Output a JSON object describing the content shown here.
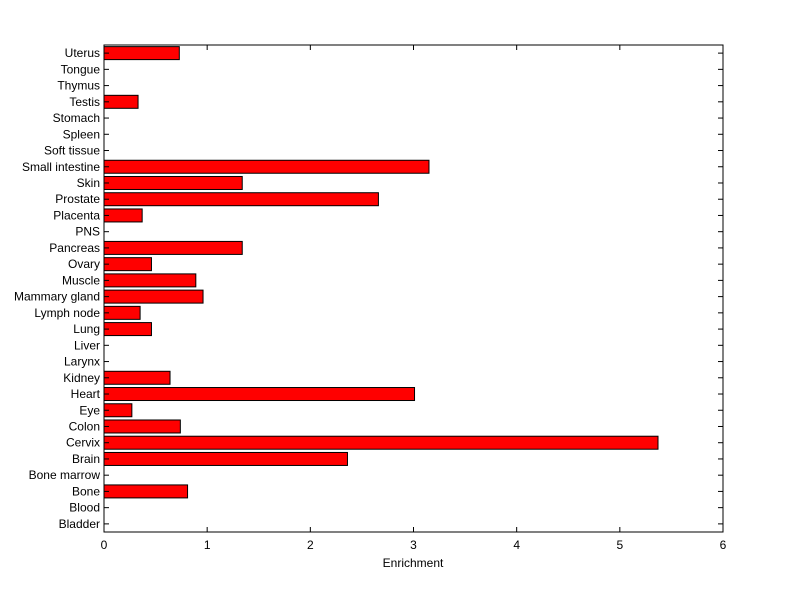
{
  "chart_data": {
    "type": "bar",
    "orientation": "horizontal",
    "categories": [
      "Bladder",
      "Blood",
      "Bone",
      "Bone marrow",
      "Brain",
      "Cervix",
      "Colon",
      "Eye",
      "Heart",
      "Kidney",
      "Larynx",
      "Liver",
      "Lung",
      "Lymph node",
      "Mammary gland",
      "Muscle",
      "Ovary",
      "Pancreas",
      "PNS",
      "Placenta",
      "Prostate",
      "Skin",
      "Small intestine",
      "Soft tissue",
      "Spleen",
      "Stomach",
      "Testis",
      "Thymus",
      "Tongue",
      "Uterus"
    ],
    "values": [
      0,
      0,
      0.81,
      0,
      2.36,
      5.37,
      0.74,
      0.27,
      3.01,
      0.64,
      0,
      0,
      0.46,
      0.35,
      0.96,
      0.89,
      0.46,
      1.34,
      0,
      0.37,
      2.66,
      1.34,
      3.15,
      0,
      0,
      0,
      0.33,
      0,
      0,
      0.73
    ],
    "xlabel": "Enrichment",
    "ylabel": "",
    "xlim": [
      0,
      6
    ],
    "xticks": [
      "0",
      "1",
      "2",
      "3",
      "4",
      "5",
      "6"
    ],
    "bar_color": "#ff0000",
    "edge_color": "#000000",
    "grid": false
  }
}
